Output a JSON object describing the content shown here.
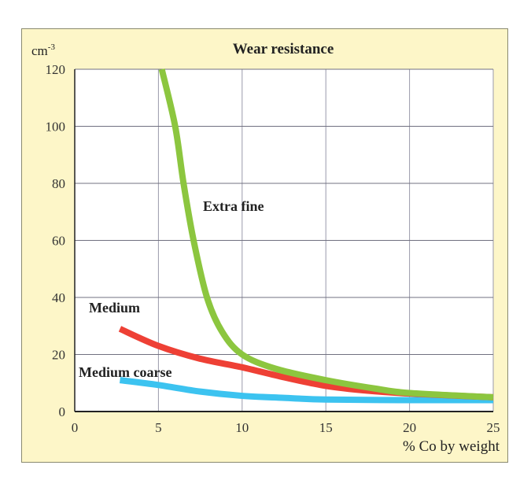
{
  "chart_data": {
    "type": "line",
    "title": "Wear resistance",
    "ylabel": "cm",
    "ylabel_sup": "-3",
    "xlabel": "% Co by weight",
    "xlim": [
      0,
      25
    ],
    "ylim": [
      0,
      120
    ],
    "xticks": [
      0,
      5,
      10,
      15,
      20,
      25
    ],
    "yticks": [
      0,
      20,
      40,
      60,
      80,
      100,
      120
    ],
    "grid": true,
    "series": [
      {
        "name": "Extra fine",
        "color": "#8cc63f",
        "x": [
          5.2,
          6.0,
          6.5,
          7.1,
          7.9,
          8.8,
          10,
          12,
          15,
          18,
          20,
          25
        ],
        "y": [
          120,
          100,
          80,
          60,
          40,
          28,
          20,
          15,
          11,
          8,
          6.5,
          5
        ]
      },
      {
        "name": "Medium",
        "color": "#ee4035",
        "x": [
          2.7,
          5,
          7.5,
          10,
          12.5,
          15,
          17.5,
          20,
          25
        ],
        "y": [
          29,
          23,
          18.5,
          15.5,
          12,
          9,
          7.3,
          6.3,
          5
        ]
      },
      {
        "name": "Medium coarse",
        "color": "#3cc3f0",
        "x": [
          2.7,
          5,
          7.5,
          10,
          12.5,
          15,
          20,
          25
        ],
        "y": [
          11,
          9.3,
          7,
          5.5,
          4.8,
          4.2,
          4,
          4
        ]
      }
    ]
  }
}
